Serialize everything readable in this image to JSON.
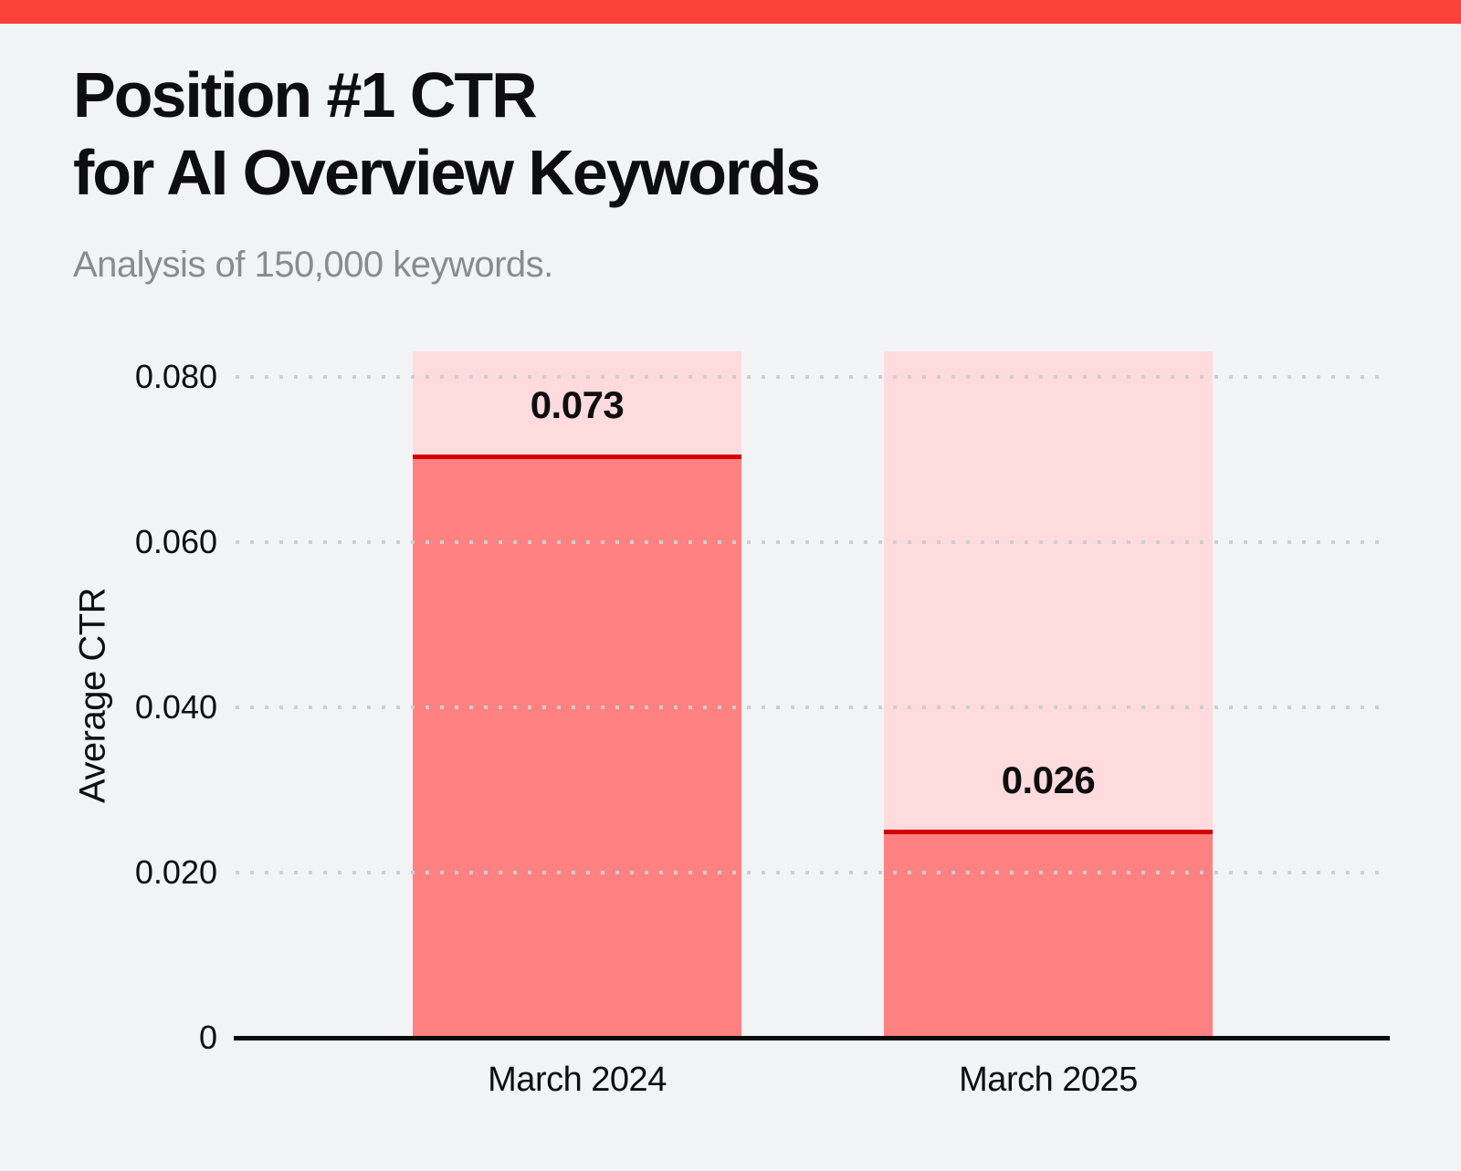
{
  "page": {
    "background_color": "#f2f3f5",
    "accent_bar_color": "#fa423b"
  },
  "header": {
    "title_lines": [
      "Position #1 CTR",
      "for AI Overview Keywords"
    ],
    "subtitle": "Analysis of 150,000 keywords."
  },
  "chart_data": {
    "type": "bar",
    "title": "Position #1 CTR for AI Overview Keywords",
    "subtitle": "Analysis of 150,000 keywords.",
    "ylabel": "Average CTR",
    "xlabel": "",
    "categories": [
      "March 2024",
      "March 2025"
    ],
    "values": [
      0.073,
      0.026
    ],
    "value_labels": [
      "0.073",
      "0.026"
    ],
    "yticks": [
      {
        "value": 0,
        "label": "0"
      },
      {
        "value": 0.02,
        "label": "0.020"
      },
      {
        "value": 0.04,
        "label": "0.040"
      },
      {
        "value": 0.06,
        "label": "0.060"
      },
      {
        "value": 0.08,
        "label": "0.080"
      }
    ],
    "ylim": [
      0,
      0.083
    ],
    "grid": "horizontal-dotted",
    "legend": "none",
    "bar_backdrop_full_height": true,
    "colors": {
      "bar_fill": "#ff8181",
      "bar_backdrop": "#ffdbdd",
      "value_line": "#d40000",
      "grid_dot": "#cdced0",
      "axis_line": "#0a0a0a",
      "text": "#0e0e10",
      "subtitle_text": "#8b8b8e"
    }
  }
}
